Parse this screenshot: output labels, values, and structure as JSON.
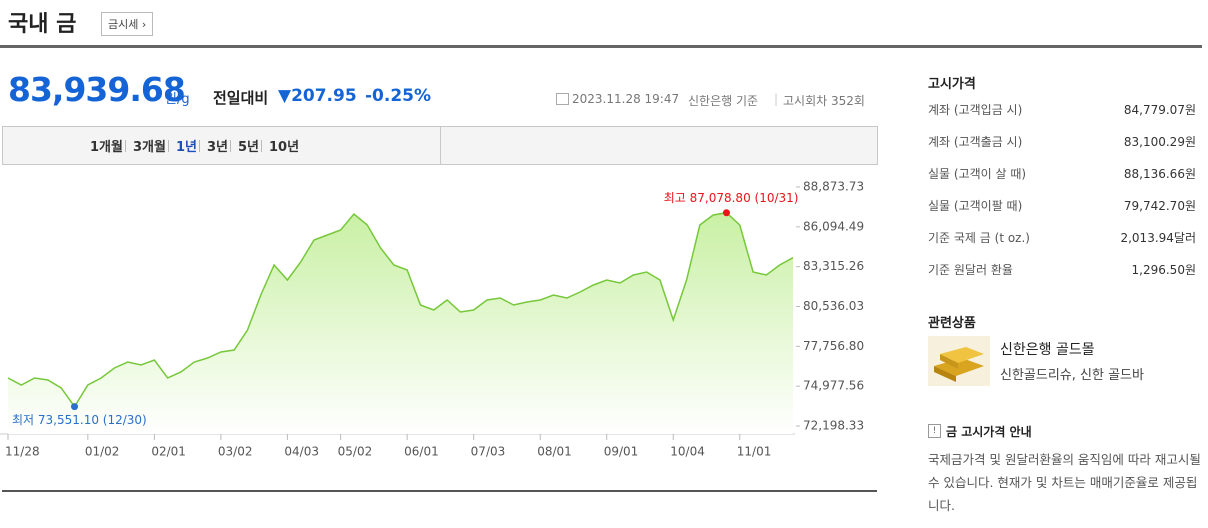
{
  "header": {
    "title": "국내 금",
    "button": "금시세 ›"
  },
  "quote": {
    "price": "83,939.68",
    "unit": "원/g",
    "change_label": "전일대비",
    "change": "▼207.95",
    "change_pct": "-0.25%",
    "time": "2023.11.28 19:47",
    "source": "신한은행 기준",
    "round": "고시회차 352회"
  },
  "tabs": {
    "items": [
      "1개월",
      "3개월",
      "1년",
      "3년",
      "5년",
      "10년"
    ],
    "active": "1년"
  },
  "chart_data": {
    "type": "area",
    "x": [
      "11/28",
      "12/05",
      "12/12",
      "12/19",
      "12/26",
      "12/30",
      "01/02",
      "01/09",
      "01/16",
      "01/23",
      "01/30",
      "02/01",
      "02/06",
      "02/13",
      "02/20",
      "02/27",
      "03/02",
      "03/09",
      "03/16",
      "03/23",
      "03/30",
      "04/03",
      "04/10",
      "04/17",
      "04/24",
      "05/02",
      "05/09",
      "05/16",
      "05/23",
      "05/30",
      "06/01",
      "06/08",
      "06/15",
      "06/22",
      "06/29",
      "07/03",
      "07/10",
      "07/17",
      "07/24",
      "07/31",
      "08/01",
      "08/08",
      "08/15",
      "08/22",
      "08/29",
      "09/01",
      "09/08",
      "09/15",
      "09/22",
      "09/29",
      "10/04",
      "10/11",
      "10/18",
      "10/25",
      "10/31",
      "11/01",
      "11/07",
      "11/14",
      "11/21",
      "11/28"
    ],
    "series": [
      {
        "name": "국내 금",
        "color": "#76c83a",
        "fill": "#c9f0a4",
        "values": [
          75547.66,
          75059.27,
          75547.66,
          75408.12,
          74849.96,
          73551.1,
          75059.27,
          75547.66,
          76245.36,
          76663.98,
          76454.67,
          76803.52,
          75547.66,
          75966.28,
          76663.98,
          76943.06,
          77361.68,
          77501.22,
          78896.62,
          81338.57,
          83431.67,
          82385.12,
          83640.98,
          85175.92,
          85524.77,
          85873.62,
          86989.94,
          86222.47,
          84617.76,
          83431.67,
          83082.82,
          80640.87,
          80292.02,
          80989.72,
          80152.48,
          80292.02,
          80989.72,
          81129.26,
          80640.87,
          80850.18,
          80989.72,
          81338.57,
          81129.26,
          81547.88,
          82036.27,
          82385.12,
          82175.81,
          82733.97,
          82943.28,
          82385.12,
          79594.32,
          82385.12,
          86222.47,
          86920.17,
          87078.8,
          86222.47,
          82943.28,
          82733.97,
          83431.67,
          83939.68
        ]
      }
    ],
    "xticks": [
      "11/28",
      "01/02",
      "02/01",
      "03/02",
      "04/03",
      "05/02",
      "06/01",
      "07/03",
      "08/01",
      "09/01",
      "10/04",
      "11/01"
    ],
    "ylim": [
      72198.33,
      88873.73
    ],
    "yticks": [
      {
        "value": 72198.33,
        "label": "72,198.33"
      },
      {
        "value": 74977.56,
        "label": "74,977.56"
      },
      {
        "value": 77756.8,
        "label": "77,756.80"
      },
      {
        "value": 80536.03,
        "label": "80,536.03"
      },
      {
        "value": 83315.26,
        "label": "83,315.26"
      },
      {
        "value": 86094.49,
        "label": "86,094.49"
      },
      {
        "value": 88873.73,
        "label": "88,873.73"
      }
    ],
    "annotations": {
      "low": {
        "text": "최저 73,551.10 (12/30)",
        "color": "#2c6fc8"
      },
      "high": {
        "text": "최고 87,078.80 (10/31)",
        "color": "#e8151b"
      }
    }
  },
  "side": {
    "prices_title": "고시가격",
    "rows": [
      [
        "계좌 (고객입금 시)",
        "84,779.07원"
      ],
      [
        "계좌 (고객출금 시)",
        "83,100.29원"
      ],
      [
        "실물 (고객이 살 때)",
        "88,136.66원"
      ],
      [
        "실물 (고객이팔 때)",
        "79,742.70원"
      ],
      [
        "기준 국제 금 (t oz.)",
        "2,013.94달러"
      ],
      [
        "기준 원달러 환율",
        "1,296.50원"
      ]
    ],
    "related_title": "관련상품",
    "product": "신한은행 골드몰",
    "product_sub": "신한골드리슈, 신한 골드바",
    "notice_title": "금 고시가격 안내",
    "notice": "국제금가격 및 원달러환율의 움직임에 따라 재고시될 수 있습니다. 현재가 및 차트는 매매기준율로 제공됩니다."
  }
}
